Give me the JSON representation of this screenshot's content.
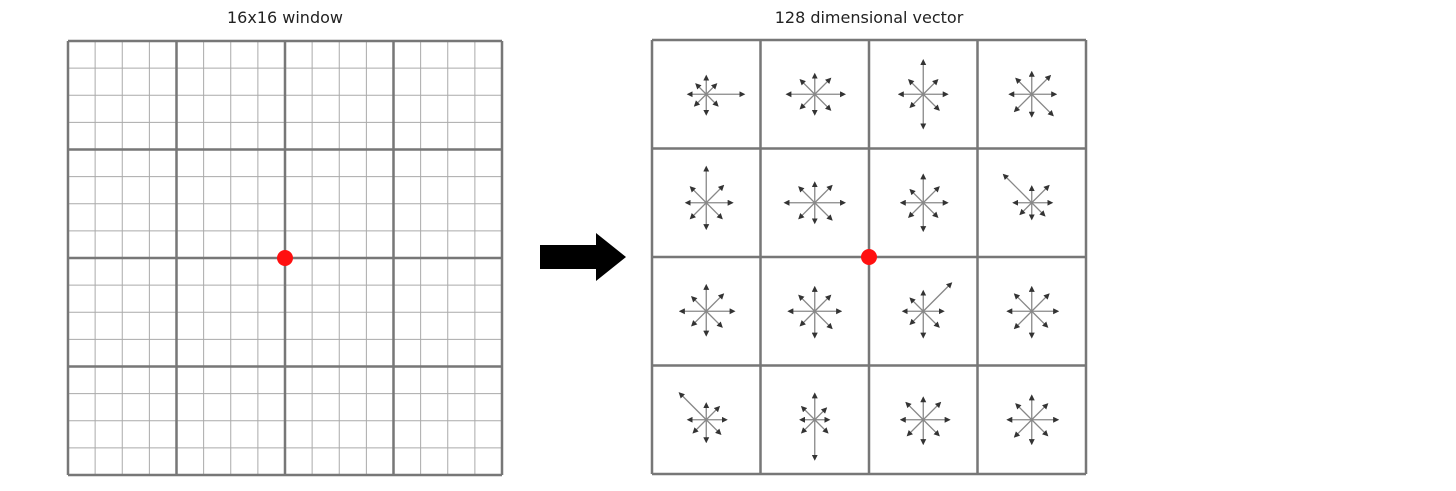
{
  "titles": {
    "left": "16x16 window",
    "right": "128 dimensional vector"
  },
  "left_grid": {
    "cells": 16,
    "blocks": 4
  },
  "right_grid": {
    "blocks": 4,
    "bins_per_histogram": 8
  },
  "colors": {
    "grid_line": "#777777",
    "grid_minor": "#aaaaaa",
    "keypoint": "#ff1010",
    "arrow": "#000000",
    "histogram_line": "#888888",
    "histogram_head": "#333333"
  },
  "histograms": [
    [
      0.45,
      0.35,
      0.95,
      0.4,
      0.5,
      0.4,
      0.45,
      0.35
    ],
    [
      0.5,
      0.55,
      0.75,
      0.55,
      0.5,
      0.5,
      0.7,
      0.5
    ],
    [
      0.85,
      0.5,
      0.6,
      0.55,
      0.85,
      0.45,
      0.6,
      0.5
    ],
    [
      0.55,
      0.65,
      0.6,
      0.75,
      0.55,
      0.6,
      0.55,
      0.55
    ],
    [
      0.9,
      0.6,
      0.65,
      0.55,
      0.65,
      0.55,
      0.5,
      0.55
    ],
    [
      0.5,
      0.6,
      0.75,
      0.6,
      0.5,
      0.55,
      0.75,
      0.55
    ],
    [
      0.7,
      0.55,
      0.6,
      0.5,
      0.7,
      0.5,
      0.55,
      0.45
    ],
    [
      0.4,
      0.6,
      0.5,
      0.45,
      0.4,
      0.4,
      0.45,
      1.0
    ],
    [
      0.65,
      0.6,
      0.7,
      0.55,
      0.6,
      0.5,
      0.65,
      0.5
    ],
    [
      0.6,
      0.55,
      0.65,
      0.6,
      0.65,
      0.5,
      0.65,
      0.55
    ],
    [
      0.5,
      1.0,
      0.5,
      0.55,
      0.65,
      0.45,
      0.5,
      0.45
    ],
    [
      0.6,
      0.6,
      0.65,
      0.55,
      0.65,
      0.6,
      0.6,
      0.6
    ],
    [
      0.4,
      0.45,
      0.5,
      0.5,
      0.55,
      0.45,
      0.45,
      0.95
    ],
    [
      0.65,
      0.4,
      0.35,
      0.45,
      1.0,
      0.45,
      0.35,
      0.45
    ],
    [
      0.55,
      0.6,
      0.65,
      0.55,
      0.6,
      0.55,
      0.55,
      0.6
    ],
    [
      0.6,
      0.55,
      0.65,
      0.55,
      0.6,
      0.6,
      0.6,
      0.55
    ]
  ]
}
